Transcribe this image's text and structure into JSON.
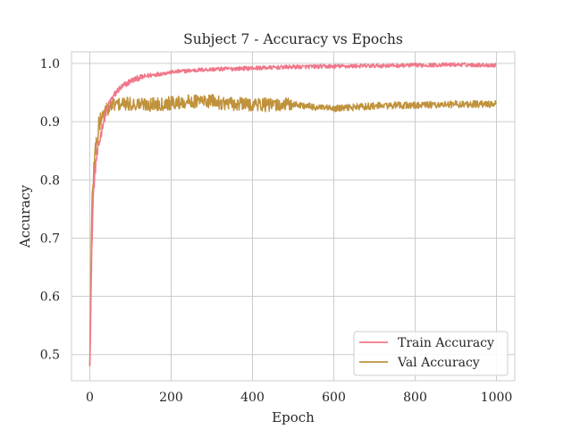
{
  "chart_data": {
    "type": "line",
    "title": "Subject 7 - Accuracy vs Epochs",
    "xlabel": "Epoch",
    "ylabel": "Accuracy",
    "xlim": [
      -45,
      1045
    ],
    "ylim": [
      0.455,
      1.02
    ],
    "xticks": [
      0,
      200,
      400,
      600,
      800,
      1000
    ],
    "xtick_labels": [
      "0",
      "200",
      "400",
      "600",
      "800",
      "1000"
    ],
    "yticks": [
      0.5,
      0.6,
      0.7,
      0.8,
      0.9,
      1.0
    ],
    "ytick_labels": [
      "0.5",
      "0.6",
      "0.7",
      "0.8",
      "0.9",
      "1.0"
    ],
    "grid": true,
    "legend_position": "lower right",
    "series": [
      {
        "name": "Train Accuracy",
        "color": "#f0778a",
        "x": [
          0,
          2,
          4,
          6,
          8,
          10,
          15,
          20,
          25,
          30,
          40,
          50,
          60,
          70,
          80,
          100,
          120,
          150,
          200,
          250,
          300,
          400,
          500,
          600,
          700,
          800,
          900,
          999
        ],
        "y": [
          0.48,
          0.56,
          0.64,
          0.71,
          0.76,
          0.79,
          0.83,
          0.85,
          0.87,
          0.89,
          0.915,
          0.935,
          0.945,
          0.955,
          0.96,
          0.97,
          0.975,
          0.98,
          0.985,
          0.988,
          0.99,
          0.992,
          0.994,
          0.995,
          0.996,
          0.997,
          0.998,
          0.997
        ]
      },
      {
        "name": "Val Accuracy",
        "color": "#c0923c",
        "x": [
          0,
          2,
          4,
          6,
          8,
          10,
          15,
          20,
          25,
          30,
          40,
          50,
          60,
          80,
          100,
          150,
          200,
          250,
          300,
          350,
          400,
          450,
          500,
          550,
          600,
          650,
          700,
          750,
          800,
          850,
          900,
          950,
          999
        ],
        "y": [
          0.48,
          0.6,
          0.7,
          0.77,
          0.8,
          0.82,
          0.86,
          0.88,
          0.9,
          0.91,
          0.92,
          0.925,
          0.93,
          0.93,
          0.93,
          0.93,
          0.932,
          0.935,
          0.935,
          0.93,
          0.93,
          0.928,
          0.93,
          0.925,
          0.922,
          0.925,
          0.927,
          0.928,
          0.928,
          0.929,
          0.93,
          0.93,
          0.93
        ]
      }
    ]
  }
}
